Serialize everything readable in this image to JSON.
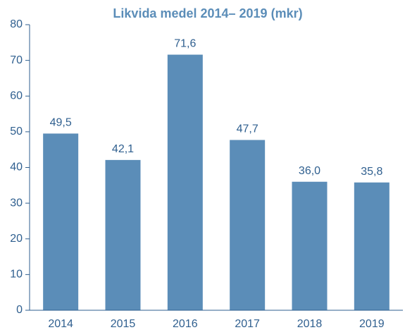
{
  "chart_data": {
    "type": "bar",
    "title": "Likvida medel 2014– 2019 (mkr)",
    "categories": [
      "2014",
      "2015",
      "2016",
      "2017",
      "2018",
      "2019"
    ],
    "values": [
      49.5,
      42.1,
      71.6,
      47.7,
      36.0,
      35.8
    ],
    "value_labels": [
      "49,5",
      "42,1",
      "71,6",
      "47,7",
      "36,0",
      "35,8"
    ],
    "color": "#5b8db8",
    "ylim": [
      0,
      80
    ],
    "yticks": [
      0,
      10,
      20,
      30,
      40,
      50,
      60,
      70,
      80
    ],
    "grid": false
  }
}
